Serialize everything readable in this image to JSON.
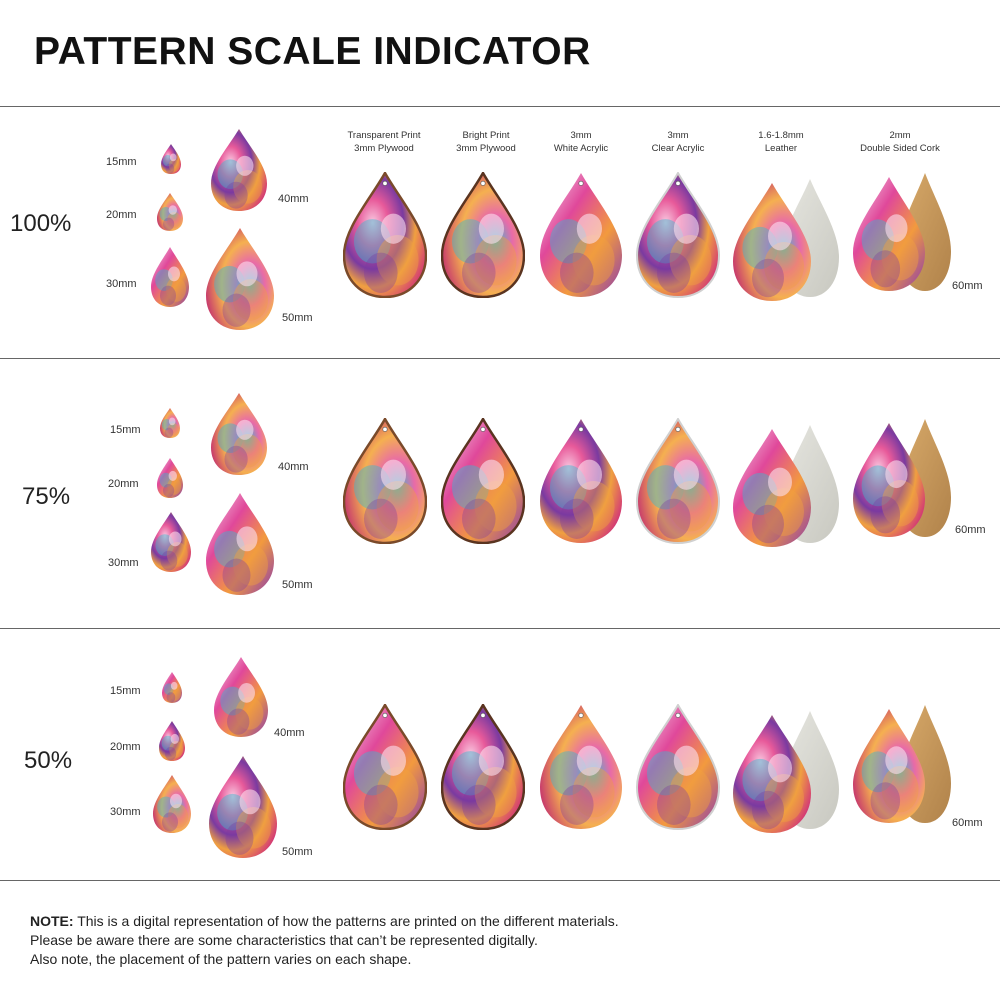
{
  "title": "PATTERN SCALE INDICATOR",
  "materials": [
    {
      "line1": "Transparent Print",
      "line2": "3mm Plywood"
    },
    {
      "line1": "Bright Print",
      "line2": "3mm Plywood"
    },
    {
      "line1": "3mm",
      "line2": "White Acrylic"
    },
    {
      "line1": "3mm",
      "line2": "Clear Acrylic"
    },
    {
      "line1": "1.6-1.8mm",
      "line2": "Leather"
    },
    {
      "line1": "2mm",
      "line2": "Double Sided Cork"
    }
  ],
  "sections": [
    {
      "scale": "100%",
      "sizes": {
        "s15": "15mm",
        "s20": "20mm",
        "s30": "30mm",
        "s40": "40mm",
        "s50": "50mm"
      },
      "material_size": "60mm"
    },
    {
      "scale": "75%",
      "sizes": {
        "s15": "15mm",
        "s20": "20mm",
        "s30": "30mm",
        "s40": "40mm",
        "s50": "50mm"
      },
      "material_size": "60mm"
    },
    {
      "scale": "50%",
      "sizes": {
        "s15": "15mm",
        "s20": "20mm",
        "s30": "30mm",
        "s40": "40mm",
        "s50": "50mm"
      },
      "material_size": "60mm"
    }
  ],
  "note": {
    "label": "NOTE:",
    "line1": " This is a digital representation of how the patterns are printed on the different materials.",
    "line2": "Please be aware there are some characteristics that can’t be represented digitally.",
    "line3": "Also note, the placement of the pattern varies on each shape."
  },
  "colors": {
    "magenta": "#d0307a",
    "purple": "#7a3aa0",
    "orange": "#f0a040",
    "cyan": "#3ab8d0",
    "pink": "#f07ab0",
    "leather_back": "#d8d8d2",
    "cork": "#c89a5a",
    "wood_edge": "#8a5a3a"
  }
}
